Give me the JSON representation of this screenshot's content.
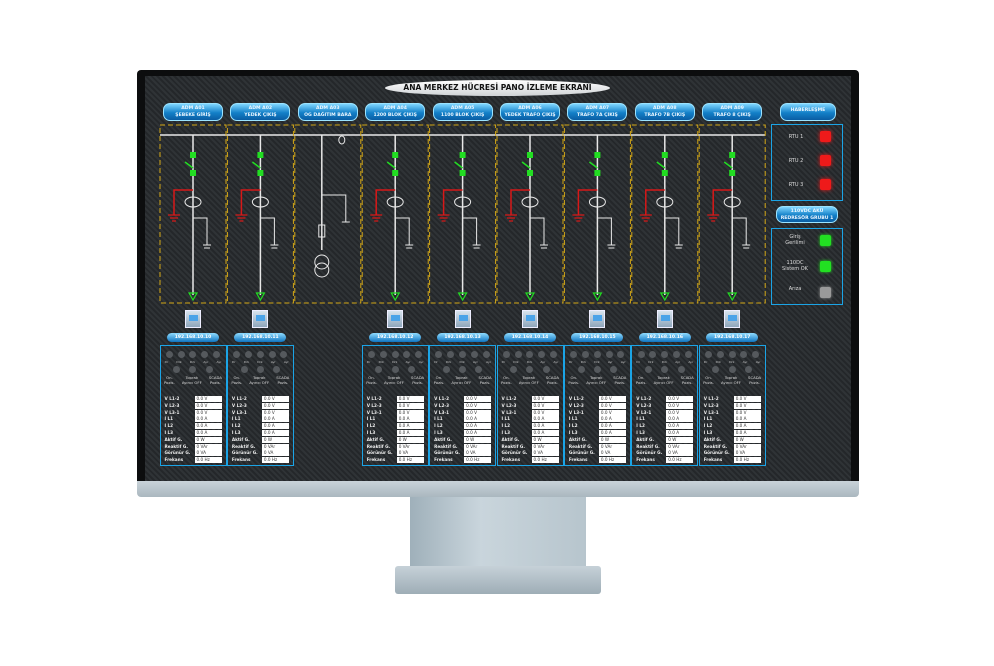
{
  "title": "ANA MERKEZ HÜCRESİ PANO İZLEME EKRANI",
  "colors": {
    "accent": "#1ba4e6",
    "busbar": "#e8e8e8",
    "bay_border": "#d4a817",
    "closed": "#22dd22",
    "earth": "#d81818",
    "rtu_alarm": "#ee1a1a",
    "ok": "#22e022",
    "idle": "#9a9a9a"
  },
  "bays": [
    {
      "code": "ADM A01",
      "name": "ŞEBEKE GİRİŞ",
      "type": "feeder",
      "ip": "192.168.10.10"
    },
    {
      "code": "ADM A02",
      "name": "YEDEK ÇIKIŞ",
      "type": "feeder",
      "ip": "192.168.10.11"
    },
    {
      "code": "ADM A03",
      "name": "OG DAĞITIM BARA",
      "type": "measurement"
    },
    {
      "code": "ADM A04",
      "name": "1200 BLOK ÇIKIŞ",
      "type": "feeder",
      "ip": "192.168.10.12"
    },
    {
      "code": "ADM A05",
      "name": "1100 BLOK ÇIKIŞ",
      "type": "feeder",
      "ip": "192.168.10.13"
    },
    {
      "code": "ADM A06",
      "name": "YEDEK TRAFO ÇIKIŞ",
      "type": "feeder",
      "ip": "192.168.10.14"
    },
    {
      "code": "ADM A07",
      "name": "TRAFO 7A ÇIKIŞ",
      "type": "feeder",
      "ip": "192.168.10.15"
    },
    {
      "code": "ADM A08",
      "name": "TRAFO 7B ÇIKIŞ",
      "type": "feeder",
      "ip": "192.168.10.16"
    },
    {
      "code": "ADM A09",
      "name": "TRAFO 8 ÇIKIŞ",
      "type": "feeder",
      "ip": "192.168.10.17"
    }
  ],
  "panel": {
    "lamp_labels": [
      "Dr",
      "Drk",
      "Drk",
      "Ayr",
      "Ayr"
    ],
    "position_labels": [
      "On.\nPozis.",
      "Toprak\nAyırıcı OFF",
      "SCADA\nPozis."
    ],
    "rows": [
      {
        "label": "V L1-2",
        "value": "0.0 V"
      },
      {
        "label": "V L2-3",
        "value": "0.0 V"
      },
      {
        "label": "V L3-1",
        "value": "0.0 V"
      },
      {
        "label": "I L1",
        "value": "0.0 A"
      },
      {
        "label": "I L2",
        "value": "0.0 A"
      },
      {
        "label": "I L3",
        "value": "0.0 A"
      },
      {
        "label": "Aktif G.",
        "value": "0 W"
      },
      {
        "label": "Reaktif G.",
        "value": "0 VAr"
      },
      {
        "label": "Görünür G.",
        "value": "0 VA"
      },
      {
        "label": "Frekans",
        "value": "0.0 Hz"
      }
    ]
  },
  "side": {
    "comm_button": "HABERLEŞME",
    "rtus": [
      {
        "label": "RTU 1",
        "state": "alarm"
      },
      {
        "label": "RTU 2",
        "state": "alarm"
      },
      {
        "label": "RTU 3",
        "state": "alarm"
      }
    ],
    "battery_button": "110VDC AKÜ\nREDRESÖR GRUBU 1",
    "battery": [
      {
        "label": "Giriş\nGerilimi",
        "state": "ok"
      },
      {
        "label": "110DC\nSistem OK",
        "state": "ok"
      },
      {
        "label": "Arıza",
        "state": "idle"
      }
    ]
  }
}
